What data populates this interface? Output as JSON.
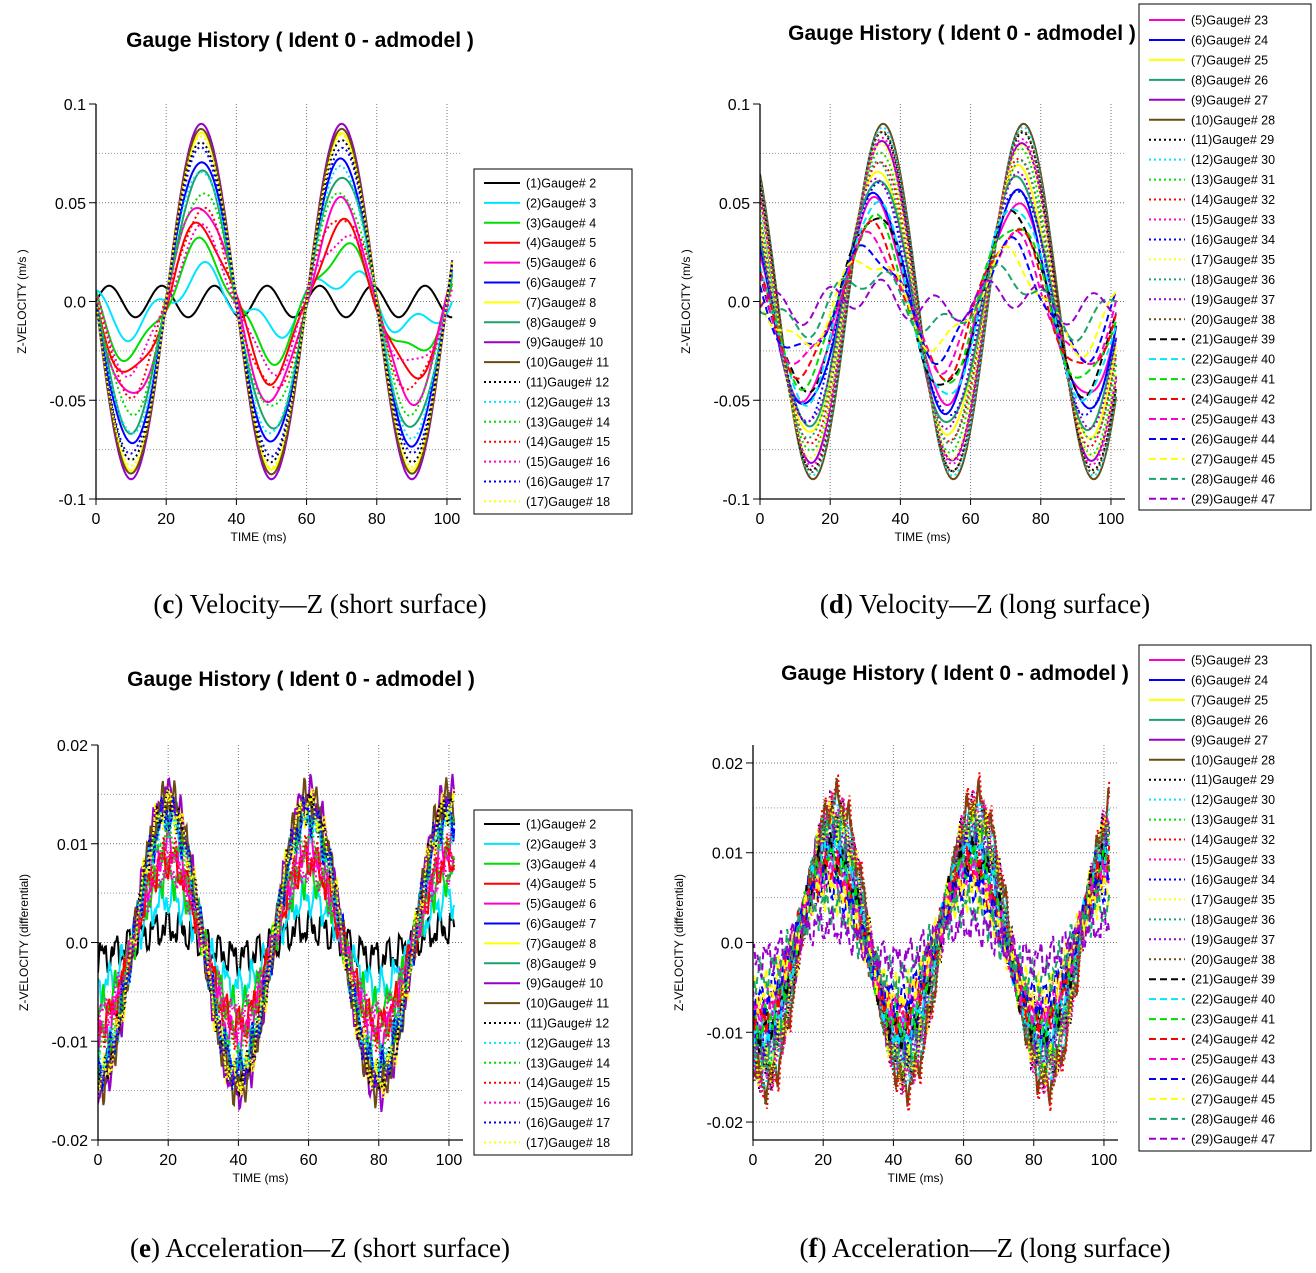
{
  "chart_data": [
    {
      "id": "c",
      "type": "line",
      "title": "Gauge History ( Ident 0 - admodel )",
      "xlabel": "TIME (ms)",
      "ylabel": "Z-VELOCITY (m/s )",
      "xlim": [
        0,
        104
      ],
      "ylim": [
        -0.1,
        0.1
      ],
      "xticks": [
        0,
        20,
        40,
        60,
        80,
        100
      ],
      "yticks": [
        -0.1,
        -0.05,
        0.0,
        0.05,
        0.1
      ],
      "ytick_labels": [
        "-0.1",
        "-0.05",
        "0.0",
        "0.05",
        "0.1"
      ],
      "grid": true,
      "legend_position": "right",
      "caption_letter": "c",
      "caption_text": " Velocity—Z (short surface)",
      "series": [
        {
          "name": "(1)Gauge#  2",
          "color": "#000000",
          "dash": "solid",
          "amp": 0.0
        },
        {
          "name": "(2)Gauge#  3",
          "color": "#00e5ff",
          "dash": "solid",
          "amp": 0.15
        },
        {
          "name": "(3)Gauge#  4",
          "color": "#00dd00",
          "dash": "solid",
          "amp": 0.3
        },
        {
          "name": "(4)Gauge#  5",
          "color": "#ff0000",
          "dash": "solid",
          "amp": 0.42
        },
        {
          "name": "(5)Gauge#  6",
          "color": "#ff00cc",
          "dash": "solid",
          "amp": 0.55
        },
        {
          "name": "(6)Gauge#  7",
          "color": "#0000ff",
          "dash": "solid",
          "amp": 0.8
        },
        {
          "name": "(7)Gauge#  8",
          "color": "#ffff00",
          "dash": "solid",
          "amp": 0.95
        },
        {
          "name": "(8)Gauge#  9",
          "color": "#1aa36a",
          "dash": "solid",
          "amp": 0.72
        },
        {
          "name": "(9)Gauge# 10",
          "color": "#9900cc",
          "dash": "solid",
          "amp": 1.0
        },
        {
          "name": "(10)Gauge# 11",
          "color": "#6b4a14",
          "dash": "solid",
          "amp": 0.97
        },
        {
          "name": "(11)Gauge# 12",
          "color": "#000000",
          "dash": "dotted",
          "amp": 0.9
        },
        {
          "name": "(12)Gauge# 13",
          "color": "#00e5ff",
          "dash": "dotted",
          "amp": 0.75
        },
        {
          "name": "(13)Gauge# 14",
          "color": "#00dd00",
          "dash": "dotted",
          "amp": 0.62
        },
        {
          "name": "(14)Gauge# 15",
          "color": "#ff0000",
          "dash": "dotted",
          "amp": 0.5
        },
        {
          "name": "(15)Gauge# 16",
          "color": "#ff00cc",
          "dash": "dotted",
          "amp": 0.38
        },
        {
          "name": "(16)Gauge# 17",
          "color": "#0000ff",
          "dash": "dotted",
          "amp": 0.86
        },
        {
          "name": "(17)Gauge# 18",
          "color": "#ffff00",
          "dash": "dotted",
          "amp": 0.93
        }
      ]
    },
    {
      "id": "d",
      "type": "line",
      "title": "Gauge History ( Ident 0 - admodel )",
      "xlabel": "TIME (ms)",
      "ylabel": "Z-VELOCITY (m/s )",
      "xlim": [
        0,
        104
      ],
      "ylim": [
        -0.1,
        0.1
      ],
      "xticks": [
        0,
        20,
        40,
        60,
        80,
        100
      ],
      "yticks": [
        -0.1,
        -0.05,
        0.0,
        0.05,
        0.1
      ],
      "ytick_labels": [
        "-0.1",
        "-0.05",
        "0.0",
        "0.05",
        "0.1"
      ],
      "grid": true,
      "legend_position": "right",
      "caption_letter": "d",
      "caption_text": " Velocity—Z (long surface)",
      "series": [
        {
          "name": "(5)Gauge# 23",
          "color": "#ff00cc",
          "dash": "solid",
          "amp": 0.55
        },
        {
          "name": "(6)Gauge# 24",
          "color": "#0000ff",
          "dash": "solid",
          "amp": 0.6
        },
        {
          "name": "(7)Gauge# 25",
          "color": "#ffff00",
          "dash": "solid",
          "amp": 0.75
        },
        {
          "name": "(8)Gauge# 26",
          "color": "#1aa36a",
          "dash": "solid",
          "amp": 0.7
        },
        {
          "name": "(9)Gauge# 27",
          "color": "#9900cc",
          "dash": "solid",
          "amp": 0.9
        },
        {
          "name": "(10)Gauge# 28",
          "color": "#6b4a14",
          "dash": "solid",
          "amp": 1.0
        },
        {
          "name": "(11)Gauge# 29",
          "color": "#000000",
          "dash": "dotted",
          "amp": 0.95
        },
        {
          "name": "(12)Gauge# 30",
          "color": "#00e5ff",
          "dash": "dotted",
          "amp": 0.98
        },
        {
          "name": "(13)Gauge# 31",
          "color": "#00dd00",
          "dash": "dotted",
          "amp": 0.85
        },
        {
          "name": "(14)Gauge# 32",
          "color": "#ff0000",
          "dash": "dotted",
          "amp": 0.8
        },
        {
          "name": "(15)Gauge# 33",
          "color": "#ff00cc",
          "dash": "dotted",
          "amp": 0.92
        },
        {
          "name": "(16)Gauge# 34",
          "color": "#0000ff",
          "dash": "dotted",
          "amp": 0.65
        },
        {
          "name": "(17)Gauge# 35",
          "color": "#ffff00",
          "dash": "dotted",
          "amp": 0.88
        },
        {
          "name": "(18)Gauge# 36",
          "color": "#1aa36a",
          "dash": "dotted",
          "amp": 0.78
        },
        {
          "name": "(19)Gauge# 37",
          "color": "#9900cc",
          "dash": "dotted",
          "amp": 0.7
        },
        {
          "name": "(20)Gauge# 38",
          "color": "#6b4a14",
          "dash": "dotted",
          "amp": 0.96
        },
        {
          "name": "(21)Gauge# 39",
          "color": "#000000",
          "dash": "dashed",
          "amp": 0.5
        },
        {
          "name": "(22)Gauge# 40",
          "color": "#00e5ff",
          "dash": "dashed",
          "amp": 0.55
        },
        {
          "name": "(23)Gauge# 41",
          "color": "#00dd00",
          "dash": "dashed",
          "amp": 0.45
        },
        {
          "name": "(24)Gauge# 42",
          "color": "#ff0000",
          "dash": "dashed",
          "amp": 0.4
        },
        {
          "name": "(25)Gauge# 43",
          "color": "#ff00cc",
          "dash": "dashed",
          "amp": 0.35
        },
        {
          "name": "(26)Gauge# 44",
          "color": "#0000ff",
          "dash": "dashed",
          "amp": 0.3
        },
        {
          "name": "(27)Gauge# 45",
          "color": "#ffff00",
          "dash": "dashed",
          "amp": 0.25
        },
        {
          "name": "(28)Gauge# 46",
          "color": "#1aa36a",
          "dash": "dashed",
          "amp": 0.15
        },
        {
          "name": "(29)Gauge# 47",
          "color": "#9900cc",
          "dash": "dashed",
          "amp": 0.05
        }
      ]
    },
    {
      "id": "e",
      "type": "line",
      "title": "Gauge History ( Ident 0 - admodel )",
      "xlabel": "TIME (ms)",
      "ylabel": "Z-VELOCITY (differential)",
      "xlim": [
        0,
        104
      ],
      "ylim": [
        -0.02,
        0.02
      ],
      "xticks": [
        0,
        20,
        40,
        60,
        80,
        100
      ],
      "yticks": [
        -0.02,
        -0.01,
        0.0,
        0.01,
        0.02
      ],
      "ytick_labels": [
        "-0.02",
        "-0.01",
        "0.0",
        "0.01",
        "0.02"
      ],
      "grid": true,
      "legend_position": "right",
      "caption_letter": "e",
      "caption_text": " Acceleration—Z (short surface)",
      "series": [
        {
          "name": "(1)Gauge#  2",
          "color": "#000000",
          "dash": "solid",
          "amp": 0.1
        },
        {
          "name": "(2)Gauge#  3",
          "color": "#00e5ff",
          "dash": "solid",
          "amp": 0.3
        },
        {
          "name": "(3)Gauge#  4",
          "color": "#00dd00",
          "dash": "solid",
          "amp": 0.45
        },
        {
          "name": "(4)Gauge#  5",
          "color": "#ff0000",
          "dash": "solid",
          "amp": 0.55
        },
        {
          "name": "(5)Gauge#  6",
          "color": "#ff00cc",
          "dash": "solid",
          "amp": 0.65
        },
        {
          "name": "(6)Gauge#  7",
          "color": "#0000ff",
          "dash": "solid",
          "amp": 0.85
        },
        {
          "name": "(7)Gauge#  8",
          "color": "#ffff00",
          "dash": "solid",
          "amp": 0.95
        },
        {
          "name": "(8)Gauge#  9",
          "color": "#1aa36a",
          "dash": "solid",
          "amp": 0.9
        },
        {
          "name": "(9)Gauge# 10",
          "color": "#9900cc",
          "dash": "solid",
          "amp": 1.0
        },
        {
          "name": "(10)Gauge# 11",
          "color": "#6b4a14",
          "dash": "solid",
          "amp": 0.98
        },
        {
          "name": "(11)Gauge# 12",
          "color": "#000000",
          "dash": "dotted",
          "amp": 0.92
        },
        {
          "name": "(12)Gauge# 13",
          "color": "#00e5ff",
          "dash": "dotted",
          "amp": 0.8
        },
        {
          "name": "(13)Gauge# 14",
          "color": "#00dd00",
          "dash": "dotted",
          "amp": 0.7
        },
        {
          "name": "(14)Gauge# 15",
          "color": "#ff0000",
          "dash": "dotted",
          "amp": 0.6
        },
        {
          "name": "(15)Gauge# 16",
          "color": "#ff00cc",
          "dash": "dotted",
          "amp": 0.5
        },
        {
          "name": "(16)Gauge# 17",
          "color": "#0000ff",
          "dash": "dotted",
          "amp": 0.88
        },
        {
          "name": "(17)Gauge# 18",
          "color": "#ffff00",
          "dash": "dotted",
          "amp": 0.93
        }
      ]
    },
    {
      "id": "f",
      "type": "line",
      "title": "Gauge History ( Ident 0 - admodel )",
      "xlabel": "TIME (ms)",
      "ylabel": "Z-VELOCITY (differential)",
      "xlim": [
        0,
        104
      ],
      "ylim": [
        -0.022,
        0.022
      ],
      "xticks": [
        0,
        20,
        40,
        60,
        80,
        100
      ],
      "yticks": [
        -0.02,
        -0.01,
        0.0,
        0.01,
        0.02
      ],
      "ytick_labels": [
        "-0.02",
        "-0.01",
        "0.0",
        "0.01",
        "0.02"
      ],
      "grid": true,
      "legend_position": "right",
      "caption_letter": "f",
      "caption_text": " Acceleration—Z (long surface)",
      "series": [
        {
          "name": "(5)Gauge# 23",
          "color": "#ff00cc",
          "dash": "solid",
          "amp": 0.6
        },
        {
          "name": "(6)Gauge# 24",
          "color": "#0000ff",
          "dash": "solid",
          "amp": 0.7
        },
        {
          "name": "(7)Gauge# 25",
          "color": "#ffff00",
          "dash": "solid",
          "amp": 0.8
        },
        {
          "name": "(8)Gauge# 26",
          "color": "#1aa36a",
          "dash": "solid",
          "amp": 0.75
        },
        {
          "name": "(9)Gauge# 27",
          "color": "#9900cc",
          "dash": "solid",
          "amp": 0.85
        },
        {
          "name": "(10)Gauge# 28",
          "color": "#6b4a14",
          "dash": "solid",
          "amp": 0.95
        },
        {
          "name": "(11)Gauge# 29",
          "color": "#000000",
          "dash": "dotted",
          "amp": 0.9
        },
        {
          "name": "(12)Gauge# 30",
          "color": "#00e5ff",
          "dash": "dotted",
          "amp": 0.88
        },
        {
          "name": "(13)Gauge# 31",
          "color": "#00dd00",
          "dash": "dotted",
          "amp": 0.82
        },
        {
          "name": "(14)Gauge# 32",
          "color": "#ff0000",
          "dash": "dotted",
          "amp": 1.0
        },
        {
          "name": "(15)Gauge# 33",
          "color": "#ff00cc",
          "dash": "dotted",
          "amp": 0.92
        },
        {
          "name": "(16)Gauge# 34",
          "color": "#0000ff",
          "dash": "dotted",
          "amp": 0.65
        },
        {
          "name": "(17)Gauge# 35",
          "color": "#ffff00",
          "dash": "dotted",
          "amp": 0.86
        },
        {
          "name": "(18)Gauge# 36",
          "color": "#1aa36a",
          "dash": "dotted",
          "amp": 0.78
        },
        {
          "name": "(19)Gauge# 37",
          "color": "#9900cc",
          "dash": "dotted",
          "amp": 0.7
        },
        {
          "name": "(20)Gauge# 38",
          "color": "#6b4a14",
          "dash": "dotted",
          "amp": 0.96
        },
        {
          "name": "(21)Gauge# 39",
          "color": "#000000",
          "dash": "dashed",
          "amp": 0.6
        },
        {
          "name": "(22)Gauge# 40",
          "color": "#00e5ff",
          "dash": "dashed",
          "amp": 0.62
        },
        {
          "name": "(23)Gauge# 41",
          "color": "#00dd00",
          "dash": "dashed",
          "amp": 0.55
        },
        {
          "name": "(24)Gauge# 42",
          "color": "#ff0000",
          "dash": "dashed",
          "amp": 0.5
        },
        {
          "name": "(25)Gauge# 43",
          "color": "#ff00cc",
          "dash": "dashed",
          "amp": 0.45
        },
        {
          "name": "(26)Gauge# 44",
          "color": "#0000ff",
          "dash": "dashed",
          "amp": 0.4
        },
        {
          "name": "(27)Gauge# 45",
          "color": "#ffff00",
          "dash": "dashed",
          "amp": 0.35
        },
        {
          "name": "(28)Gauge# 46",
          "color": "#1aa36a",
          "dash": "dashed",
          "amp": 0.25
        },
        {
          "name": "(29)Gauge# 47",
          "color": "#9900cc",
          "dash": "dashed",
          "amp": 0.12
        }
      ]
    }
  ]
}
